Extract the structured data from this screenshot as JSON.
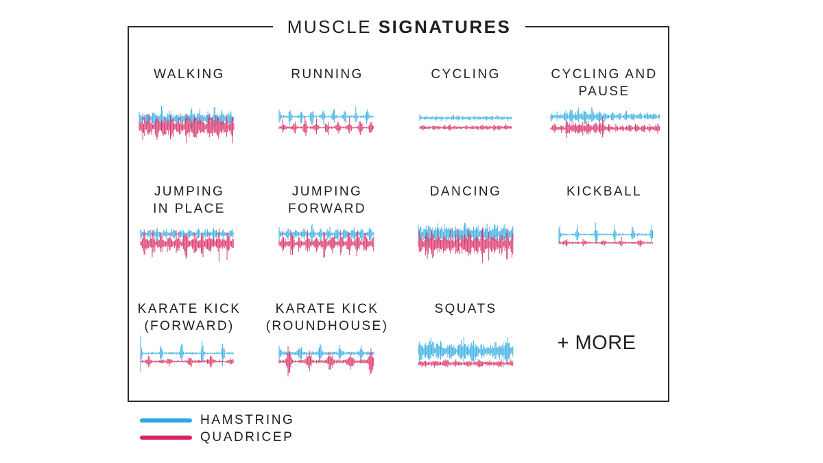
{
  "title": {
    "regular": "MUSCLE",
    "bold": "SIGNATURES"
  },
  "colors": {
    "hamstring": "#2aa8e0",
    "quadricep": "#d8245e"
  },
  "activities": [
    {
      "line1": "WALKING",
      "line2": ""
    },
    {
      "line1": "RUNNING",
      "line2": ""
    },
    {
      "line1": "CYCLING",
      "line2": ""
    },
    {
      "line1": "CYCLING AND",
      "line2": "PAUSE"
    },
    {
      "line1": "JUMPING",
      "line2": "IN PLACE"
    },
    {
      "line1": "JUMPING",
      "line2": "FORWARD"
    },
    {
      "line1": "DANCING",
      "line2": ""
    },
    {
      "line1": "KICKBALL",
      "line2": ""
    },
    {
      "line1": "KARATE KICK",
      "line2": "(FORWARD)"
    },
    {
      "line1": "KARATE KICK",
      "line2": "(ROUNDHOUSE)"
    },
    {
      "line1": "SQUATS",
      "line2": ""
    }
  ],
  "more_label": "+ MORE",
  "legend": [
    {
      "label": "HAMSTRING",
      "color": "#2aa8e0"
    },
    {
      "label": "QUADRICEP",
      "color": "#d8245e"
    }
  ]
}
